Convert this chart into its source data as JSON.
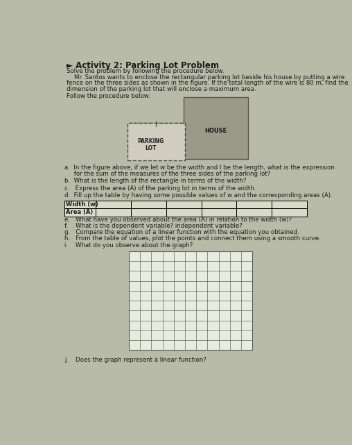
{
  "title": "► Activity 2: Parking Lot Problem",
  "subtitle": "Solve the problem by following the procedure below.",
  "problem_line1": "    Mr. Santos wants to enclose the rectangular parking lot beside his house by putting a wire",
  "problem_line2": "fence on the three sides as shown in the figure. If the total length of the wire is 80 m, find the",
  "problem_line3": "dimension of the parking lot that will enclose a maximum area.",
  "follow_text": "Follow the procedure below:",
  "parking_label": "PARKING\nLOT",
  "house_label": "HOUSE",
  "qa": "a.  In the figure above, if we let w be the width and l be the length, what is the expression",
  "qa2": "     for the sum of the measures of the three sides of the parking lot?",
  "qb": "b.  What is the length of the rectangle in terms of the width?",
  "qc": "c.   Express the area (A) of the parking lot in terms of the width.",
  "qd": "d.  Fill up the table by having some possible values of w and the corresponding areas (A).",
  "table_col1": "Width (w)",
  "table_col2": "Area (A)",
  "qe": "e.   What have you observed about the area (A) in relation to the width (w)?",
  "qf": "f.    What is the dependent variable? independent variable?",
  "qg": "g.   Compare the equation of a linear function with the equation you obtained.",
  "qh": "h.   From the table of values, plot the points and connect them using a smooth curve.",
  "qi": "i.    What do you observe about the graph?",
  "qj": "j.    Does the graph represent a linear function?",
  "bg_color": "#b8bba8",
  "paper_color": "#c8cbb8",
  "text_color": "#1a1a18",
  "dark_text": "#111111",
  "table_bg": "#d0d3c0",
  "grid_cols": 11,
  "grid_rows": 10,
  "parking_dashed_color": "#444444",
  "house_fill": "#9a9a88",
  "parking_fill": "#d0cdc0"
}
